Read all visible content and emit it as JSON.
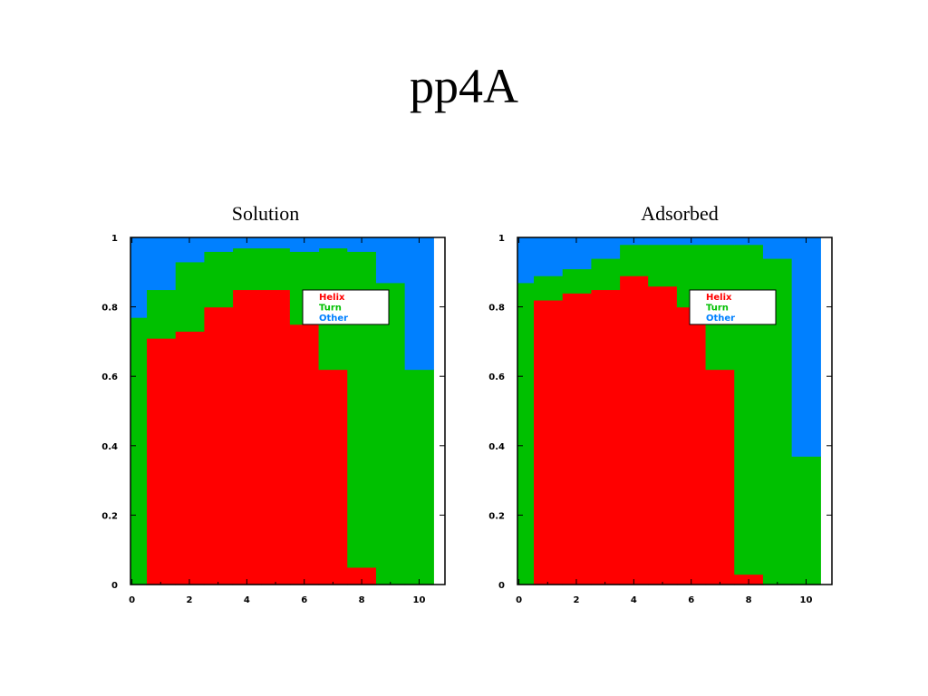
{
  "title": "pp4A",
  "colors": {
    "Helix": "#ff0000",
    "Turn": "#00c000",
    "Other": "#0080ff"
  },
  "chart_data": [
    {
      "type": "stacked-step-area",
      "title": "Solution",
      "x": [
        0,
        1,
        2,
        3,
        4,
        5,
        6,
        7,
        8,
        9,
        10
      ],
      "xticks": [
        "0",
        "2",
        "4",
        "6",
        "8",
        "10"
      ],
      "xtick_values": [
        0,
        2,
        4,
        6,
        8,
        10
      ],
      "yticks": [
        "0",
        "0.2",
        "0.4",
        "0.6",
        "0.8",
        "1"
      ],
      "ytick_values": [
        0,
        0.2,
        0.4,
        0.6,
        0.8,
        1
      ],
      "xlim": [
        -0.05,
        10.9
      ],
      "ylim": [
        0,
        1
      ],
      "legend_position": "top-right",
      "series": [
        {
          "name": "Helix",
          "values": [
            0,
            0.71,
            0.73,
            0.8,
            0.85,
            0.85,
            0.75,
            0.62,
            0.05,
            0,
            0
          ]
        },
        {
          "name": "Turn",
          "values": [
            0.77,
            0.14,
            0.2,
            0.16,
            0.12,
            0.12,
            0.21,
            0.35,
            0.91,
            0.87,
            0.62
          ]
        },
        {
          "name": "Other",
          "values": [
            0.23,
            0.15,
            0.07,
            0.04,
            0.03,
            0.03,
            0.04,
            0.03,
            0.04,
            0.13,
            0.38
          ]
        }
      ]
    },
    {
      "type": "stacked-step-area",
      "title": "Adsorbed",
      "x": [
        0,
        1,
        2,
        3,
        4,
        5,
        6,
        7,
        8,
        9,
        10
      ],
      "xticks": [
        "0",
        "2",
        "4",
        "6",
        "8",
        "10"
      ],
      "xtick_values": [
        0,
        2,
        4,
        6,
        8,
        10
      ],
      "yticks": [
        "0",
        "0.2",
        "0.4",
        "0.6",
        "0.8",
        "1"
      ],
      "ytick_values": [
        0,
        0.2,
        0.4,
        0.6,
        0.8,
        1
      ],
      "xlim": [
        -0.05,
        10.9
      ],
      "ylim": [
        0,
        1
      ],
      "legend_position": "top-right",
      "series": [
        {
          "name": "Helix",
          "values": [
            0,
            0.82,
            0.84,
            0.85,
            0.89,
            0.86,
            0.8,
            0.62,
            0.03,
            0,
            0
          ]
        },
        {
          "name": "Turn",
          "values": [
            0.87,
            0.07,
            0.07,
            0.09,
            0.09,
            0.12,
            0.18,
            0.36,
            0.95,
            0.94,
            0.37
          ]
        },
        {
          "name": "Other",
          "values": [
            0.13,
            0.11,
            0.09,
            0.06,
            0.02,
            0.02,
            0.02,
            0.02,
            0.02,
            0.06,
            0.63
          ]
        }
      ]
    }
  ]
}
